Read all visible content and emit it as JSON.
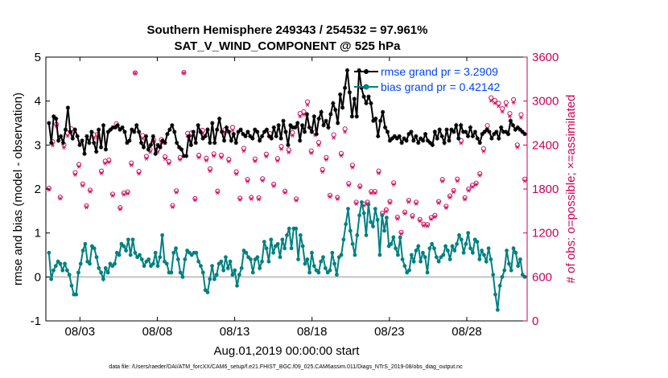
{
  "title_line1": "Southern Hemisphere 249343 / 254532 = 97.961%",
  "title_line2": "SAT_V_WIND_COMPONENT @ 525 hPa",
  "footer": "data file: /Users/raeder/DAI/ATM_forcXX/CAM6_setup/f.e21.FHIST_BGC.f09_025.CAM6assim.011/Diags_NTrS_2019-08/obs_diag_output.nc",
  "colors": {
    "rmse": "#000000",
    "bias": "#008080",
    "obs": "#cc0055",
    "zero_line": "#b3b3b3",
    "legend_text": "#0044ff"
  },
  "chart_data": {
    "type": "line",
    "xlabel": "Aug.01,2019 00:00:00 start",
    "ylabel": "rmse and bias (model - observation)",
    "y2label": "# of obs: o=possible; ×=assimilated",
    "xlim": [
      0.8,
      31.9
    ],
    "ylim": [
      -1,
      5
    ],
    "y2lim": [
      0,
      3600
    ],
    "x_ticks": [
      3,
      8,
      13,
      18,
      23,
      28
    ],
    "x_tick_labels": [
      "08/03",
      "08/08",
      "08/13",
      "08/18",
      "08/23",
      "08/28"
    ],
    "y_ticks": [
      -1,
      0,
      1,
      2,
      3,
      4,
      5
    ],
    "y_tick_labels": [
      "-1",
      "0",
      "1",
      "2",
      "3",
      "4",
      "5"
    ],
    "y2_ticks": [
      0,
      600,
      1200,
      1800,
      2400,
      3000,
      3600
    ],
    "y2_tick_labels": [
      "0",
      "600",
      "1200",
      "1800",
      "2400",
      "3000",
      "3600"
    ],
    "legend_position": "top-right",
    "grid": false,
    "series": [
      {
        "name": "rmse grand pr = 3.2909",
        "marker": "star",
        "axis": "left",
        "values": [
          3.5,
          3.05,
          3.65,
          3.6,
          3.1,
          3.2,
          3.05,
          3.35,
          3.85,
          3.3,
          3.15,
          3.35,
          3.2,
          3.0,
          3.1,
          2.8,
          3.2,
          3.05,
          3.3,
          3.05,
          2.85,
          3.35,
          2.95,
          3.45,
          2.9,
          3.3,
          3.35,
          3.4,
          3.4,
          3.45,
          3.35,
          3.4,
          3.3,
          3.05,
          3.1,
          3.35,
          3.3,
          3.45,
          3.3,
          3.05,
          2.95,
          3.2,
          2.9,
          3.0,
          3.2,
          2.8,
          3.0,
          2.95,
          3.1,
          3.05,
          3.25,
          3.35,
          3.45,
          3.3,
          3.05,
          2.95,
          2.9,
          2.75,
          2.75,
          3.2,
          3.0,
          3.3,
          3.05,
          3.45,
          3.3,
          3.15,
          3.2,
          3.35,
          3.05,
          3.5,
          3.05,
          3.35,
          3.6,
          3.3,
          3.1,
          3.4,
          3.3,
          3.1,
          3.25,
          3.05,
          3.3,
          3.35,
          3.25,
          3.2,
          3.3,
          3.2,
          3.15,
          3.35,
          3.3,
          3.1,
          3.2,
          3.3,
          3.35,
          3.2,
          3.15,
          3.4,
          3.2,
          3.45,
          3.15,
          3.55,
          3.3,
          3.0,
          3.45,
          3.4,
          3.4,
          3.5,
          3.1,
          3.45,
          3.3,
          3.7,
          3.4,
          3.3,
          3.65,
          3.25,
          3.6,
          3.75,
          3.45,
          3.55,
          3.4,
          3.7,
          3.95,
          3.8,
          3.5,
          4.15,
          3.85,
          4.3,
          4.7,
          4.2,
          3.65,
          4.05,
          3.65,
          4.7,
          4.3,
          4.1,
          3.95,
          4.1,
          3.95,
          3.55,
          3.6,
          3.2,
          3.55,
          3.75,
          3.4,
          3.3,
          3.1,
          3.15,
          3.2,
          3.15,
          3.2,
          3.05,
          3.15,
          3.1,
          3.25,
          3.3,
          3.1,
          3.2,
          3.05,
          3.15,
          3.1,
          3.25,
          3.1,
          3.05,
          3.0,
          3.3,
          3.15,
          3.35,
          3.2,
          3.05,
          3.35,
          3.1,
          3.35,
          3.3,
          3.45,
          3.15,
          3.45,
          3.3,
          3.3,
          3.2,
          3.4,
          3.2,
          3.3,
          3.15,
          3.05,
          3.25,
          3.3,
          3.35,
          3.3,
          3.15,
          3.25,
          3.3,
          3.15,
          3.4,
          3.3,
          3.3,
          3.25,
          3.55,
          3.45,
          3.35,
          3.4,
          3.35,
          3.3,
          3.25
        ]
      },
      {
        "name": "bias grand pr = 0.42142",
        "marker": "dot",
        "axis": "left",
        "values": [
          0.55,
          -0.05,
          0.15,
          0.25,
          0.35,
          0.3,
          0.15,
          0.3,
          0.15,
          0.05,
          -0.2,
          -0.4,
          -0.4,
          0.1,
          0.3,
          0.6,
          0.75,
          0.35,
          0.3,
          0.7,
          0.65,
          0.45,
          0.2,
          0.1,
          -0.05,
          0.2,
          0.1,
          0.3,
          0.25,
          0.3,
          0.55,
          0.5,
          0.75,
          0.7,
          0.6,
          0.85,
          0.5,
          0.85,
          0.55,
          0.45,
          0.5,
          0.4,
          0.25,
          0.35,
          0.4,
          0.25,
          0.3,
          0.55,
          0.25,
          0.45,
          0.95,
          0.35,
          0.3,
          0.1,
          0.1,
          0.55,
          0.65,
          0.4,
          0.1,
          0.0,
          0.4,
          0.6,
          0.55,
          0.5,
          0.55,
          0.55,
          0.35,
          0.25,
          0.1,
          -0.3,
          -0.35,
          -0.05,
          0.25,
          -0.05,
          0.05,
          0.3,
          0.35,
          0.15,
          0.45,
          0.2,
          0.35,
          0.05,
          0.15,
          -0.2,
          0.05,
          0.2,
          0.6,
          0.55,
          0.45,
          0.4,
          0.1,
          0.4,
          0.45,
          0.2,
          0.35,
          0.8,
          0.65,
          0.35,
          0.85,
          0.55,
          0.7,
          0.75,
          0.45,
          0.85,
          0.65,
          0.95,
          1.1,
          0.65,
          1.1,
          1.1,
          0.4,
          0.95,
          0.7,
          0.3,
          0.4,
          0.1,
          0.55,
          0.25,
          0.15,
          0.1,
          0.35,
          0.45,
          0.2,
          0.1,
          0.15,
          0.55,
          0.3,
          0.05,
          0.45,
          0.5,
          0.85,
          1.2,
          1.55,
          1.05,
          0.75,
          0.5,
          0.95,
          1.4,
          1.7,
          1.45,
          0.95,
          1.65,
          1.25,
          1.15,
          1.55,
          1.3,
          0.5,
          1.4,
          1.05,
          1.35,
          0.7,
          0.75,
          0.9,
          0.65,
          0.5,
          0.9,
          0.4,
          0.25,
          0.1,
          0.15,
          0.5,
          0.35,
          0.6,
          0.7,
          0.35,
          0.55,
          0.45,
          0.1,
          0.65,
          0.75,
          0.65,
          0.45,
          0.35,
          0.45,
          0.5,
          0.7,
          0.6,
          0.4,
          0.7,
          0.6,
          0.75,
          0.95,
          0.85,
          0.55,
          0.75,
          1.0,
          0.65,
          0.55,
          0.85,
          0.8,
          0.4,
          0.6,
          0.5,
          0.35,
          0.65,
          0.4,
          0.05,
          -0.4,
          -0.75,
          -0.2,
          0.0,
          0.15,
          0.6,
          0.3,
          0.15,
          0.65,
          0.55,
          0.25,
          0.4,
          0.05,
          0.0
        ]
      }
    ],
    "obs_possible": {
      "axis": "right",
      "marker": "circle",
      "values": [
        1810,
        2445,
        2685,
        1690,
        2405,
        2565,
        2620,
        2025,
        2135,
        1870,
        1570,
        1785,
        2540,
        2545,
        2045,
        2180,
        2195,
        1730,
        2690,
        1545,
        1745,
        1760,
        2155,
        3385,
        2040,
        2530,
        2245,
        2340,
        2470,
        2340,
        2475,
        2240,
        2175,
        1575,
        1775,
        2230,
        3390,
        2560,
        2565,
        1670,
        2260,
        2600,
        2220,
        2075,
        2280,
        1770,
        2260,
        2610,
        2205,
        2640,
        2035,
        1675,
        2355,
        1930,
        1685,
        2210,
        1680,
        1940,
        2275,
        2555,
        1865,
        2215,
        2380,
        1770,
        2335,
        2570,
        1665,
        2830,
        2855,
        2990,
        2320,
        2575,
        2435,
        2065,
        2230,
        1715,
        2540,
        1685,
        2285,
        2620,
        1875,
        2125,
        1620,
        1840,
        1595,
        1620,
        1765,
        1765,
        2045,
        1470,
        1515,
        1630,
        1885,
        1415,
        1210,
        1485,
        1645,
        1435,
        1620,
        1385,
        1320,
        1315,
        1410,
        1440,
        1630,
        1930,
        1565,
        1705,
        1780,
        1935,
        2460,
        1680,
        1800,
        1850,
        1880,
        2010,
        2350,
        2665,
        3045,
        3010,
        2970,
        2895,
        2980,
        2830,
        3020,
        2400,
        2815,
        1935
      ]
    },
    "obs_assimilated": {
      "axis": "right",
      "marker": "x",
      "values": [
        1790,
        2395,
        2655,
        1670,
        2365,
        2525,
        2580,
        1995,
        2105,
        1845,
        1550,
        1765,
        2500,
        2505,
        2015,
        2150,
        2165,
        1710,
        2650,
        1525,
        1725,
        1740,
        2125,
        3380,
        2010,
        2490,
        2215,
        2305,
        2435,
        2305,
        2440,
        2210,
        2145,
        1555,
        1755,
        2200,
        3385,
        2520,
        2525,
        1650,
        2230,
        2560,
        2190,
        2045,
        2250,
        1750,
        2230,
        2570,
        2175,
        2600,
        2005,
        1655,
        2320,
        1905,
        1665,
        2180,
        1660,
        1915,
        2245,
        2515,
        1840,
        2185,
        2345,
        1750,
        2300,
        2530,
        1645,
        2790,
        2815,
        2950,
        2290,
        2535,
        2400,
        2035,
        2200,
        1695,
        2500,
        1665,
        2255,
        2580,
        1850,
        2095,
        1600,
        1820,
        1575,
        1600,
        1745,
        1745,
        2015,
        1450,
        1495,
        1610,
        1860,
        1395,
        1190,
        1465,
        1625,
        1415,
        1600,
        1365,
        1300,
        1295,
        1390,
        1420,
        1610,
        1905,
        1545,
        1685,
        1760,
        1910,
        2425,
        1660,
        1780,
        1830,
        1860,
        1985,
        2315,
        2625,
        3005,
        2970,
        2930,
        2855,
        2940,
        2790,
        2980,
        2370,
        2775,
        1910
      ]
    }
  }
}
